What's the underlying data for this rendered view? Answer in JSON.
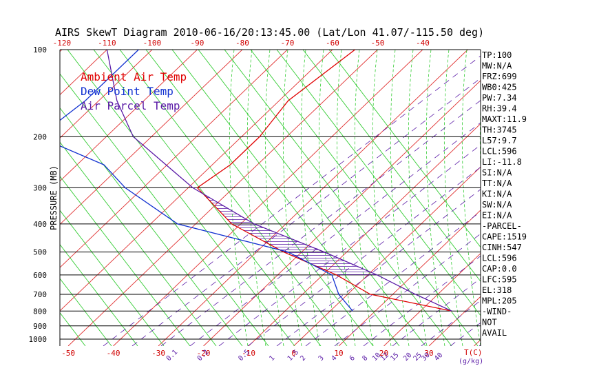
{
  "chart_data": {
    "type": "line",
    "title": "AIRS SkewT Diagram 2010-06-16/20:13:45.00 (Lat/Lon 41.07/-115.50 deg)",
    "ylabel": "PRESSURE (MB)",
    "pressure_ticks": [
      "100",
      "200",
      "300",
      "400",
      "500",
      "600",
      "700",
      "800",
      "900",
      "1000"
    ],
    "pressure_levels": [
      100,
      200,
      300,
      400,
      500,
      600,
      700,
      800,
      900,
      1000
    ],
    "top_temp_ticks": [
      "-120",
      "-110",
      "-100",
      "-90",
      "-80",
      "-70",
      "-60",
      "-50",
      "-40"
    ],
    "bottom_temp_ticks": [
      "-50",
      "-40",
      "-30",
      "-20",
      "-10",
      "0",
      "10",
      "20",
      "30"
    ],
    "temp_axis_label": "T(C)",
    "mixing_ratio_ticks": [
      "0.1",
      "0.2",
      "0.5",
      "1",
      "1.5",
      "2",
      "3",
      "4",
      "6",
      "8",
      "10",
      "12",
      "15",
      "20",
      "25",
      "30",
      "40"
    ],
    "mixing_ratio_label": "(g/kg)",
    "series": [
      {
        "name": "Ambient Air Temp",
        "color": "#e00000",
        "points": [
          [
            100,
            -55
          ],
          [
            150,
            -58
          ],
          [
            200,
            -56
          ],
          [
            250,
            -56
          ],
          [
            300,
            -58
          ],
          [
            400,
            -42
          ],
          [
            500,
            -24
          ],
          [
            600,
            -7
          ],
          [
            700,
            5
          ],
          [
            800,
            27
          ]
        ]
      },
      {
        "name": "Dew Point Temp",
        "color": "#1030d0",
        "points": [
          [
            100,
            -103
          ],
          [
            150,
            -103
          ],
          [
            200,
            -105
          ],
          [
            250,
            -84
          ],
          [
            300,
            -74
          ],
          [
            400,
            -54
          ],
          [
            500,
            -23
          ],
          [
            600,
            -8
          ],
          [
            700,
            -2
          ],
          [
            800,
            5
          ]
        ]
      },
      {
        "name": "Air Parcel Temp",
        "color": "#5a1aa6",
        "points": [
          [
            800,
            27
          ],
          [
            700,
            15
          ],
          [
            600,
            2
          ],
          [
            500,
            -15
          ],
          [
            400,
            -37
          ],
          [
            300,
            -59
          ],
          [
            200,
            -84
          ],
          [
            150,
            -96
          ],
          [
            100,
            -110
          ]
        ]
      }
    ],
    "indices": [
      "TP:100",
      "MW:N/A",
      "FRZ:699",
      "WB0:425",
      "PW:7.34",
      "RH:39.4",
      "MAXT:11.9",
      "TH:3745",
      "L57:9.7",
      "LCL:596",
      "LI:-11.8",
      "SI:N/A",
      "TT:N/A",
      "KI:N/A",
      "SW:N/A",
      "EI:N/A",
      "-PARCEL-",
      "CAPE:1519",
      "CINH:547",
      "LCL:596",
      "CAP:0.0",
      "LFC:595",
      "EL:318",
      "MPL:205",
      "-WIND-",
      "NOT",
      "AVAIL"
    ]
  }
}
